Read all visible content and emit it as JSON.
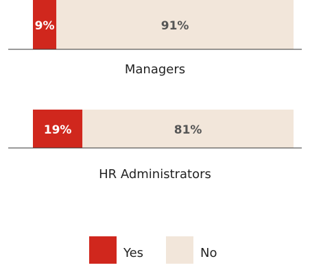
{
  "chart_data": {
    "type": "bar",
    "orientation": "horizontal",
    "stacked": true,
    "categories": [
      "Managers",
      "HR Administrators"
    ],
    "series": [
      {
        "name": "Yes",
        "color": "#d0271d",
        "label_color": "#ffffff",
        "values": [
          9,
          19
        ],
        "value_labels": [
          "9%",
          "19%"
        ]
      },
      {
        "name": "No",
        "color": "#f2e6da",
        "label_color": "#555555",
        "values": [
          91,
          81
        ],
        "value_labels": [
          "91%",
          "81%"
        ]
      }
    ]
  }
}
